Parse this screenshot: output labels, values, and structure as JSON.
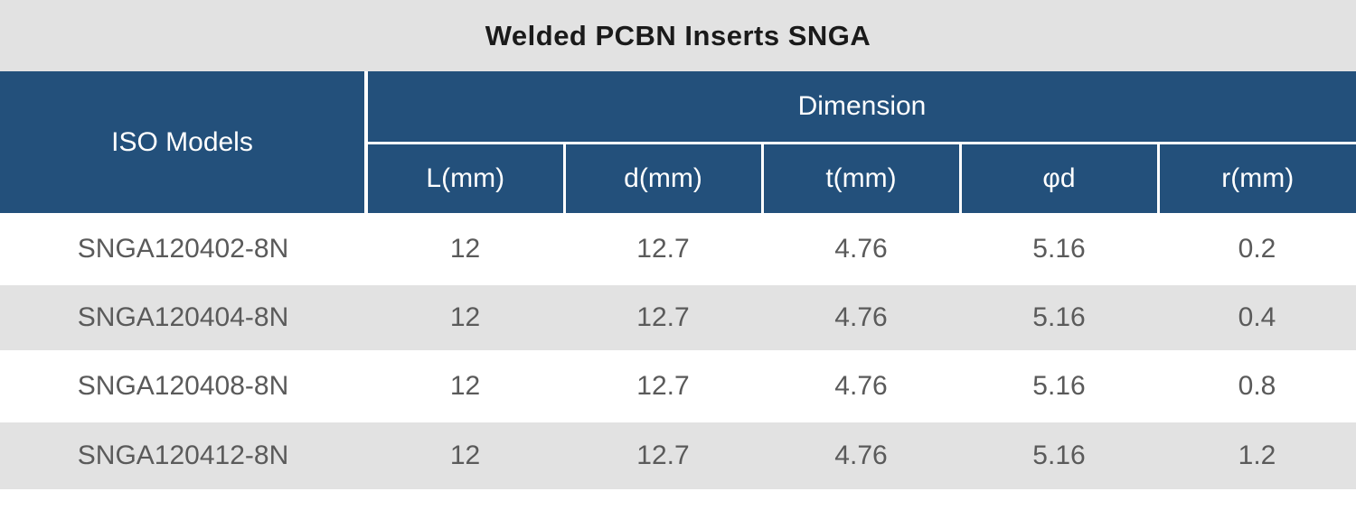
{
  "title": "Welded PCBN Inserts SNGA",
  "table": {
    "iso_models_header": "ISO Models",
    "dimension_header": "Dimension",
    "sub_headers": [
      "L(mm)",
      "d(mm)",
      "t(mm)",
      "φd",
      "r(mm)"
    ],
    "rows": [
      {
        "model": "SNGA120402-8N",
        "values": [
          "12",
          "12.7",
          "4.76",
          "5.16",
          "0.2"
        ]
      },
      {
        "model": "SNGA120404-8N",
        "values": [
          "12",
          "12.7",
          "4.76",
          "5.16",
          "0.4"
        ]
      },
      {
        "model": "SNGA120408-8N",
        "values": [
          "12",
          "12.7",
          "4.76",
          "5.16",
          "0.8"
        ]
      },
      {
        "model": "SNGA120412-8N",
        "values": [
          "12",
          "12.7",
          "4.76",
          "5.16",
          "1.2"
        ]
      }
    ]
  },
  "chart_data": {
    "type": "table",
    "title": "Welded PCBN Inserts SNGA",
    "columns": [
      "ISO Models",
      "L(mm)",
      "d(mm)",
      "t(mm)",
      "φd",
      "r(mm)"
    ],
    "column_group": {
      "label": "Dimension",
      "spans": [
        "L(mm)",
        "d(mm)",
        "t(mm)",
        "φd",
        "r(mm)"
      ]
    },
    "rows": [
      [
        "SNGA120402-8N",
        12,
        12.7,
        4.76,
        5.16,
        0.2
      ],
      [
        "SNGA120404-8N",
        12,
        12.7,
        4.76,
        5.16,
        0.4
      ],
      [
        "SNGA120408-8N",
        12,
        12.7,
        4.76,
        5.16,
        0.8
      ],
      [
        "SNGA120412-8N",
        12,
        12.7,
        4.76,
        5.16,
        1.2
      ]
    ]
  },
  "colors": {
    "header_blue": "#23507b",
    "title_bg": "#e2e2e2",
    "row_alt_bg": "#e2e2e2",
    "row_bg": "#ffffff",
    "data_text": "#5a5a5a",
    "header_text": "#ffffff",
    "title_text": "#1a1a1a"
  }
}
